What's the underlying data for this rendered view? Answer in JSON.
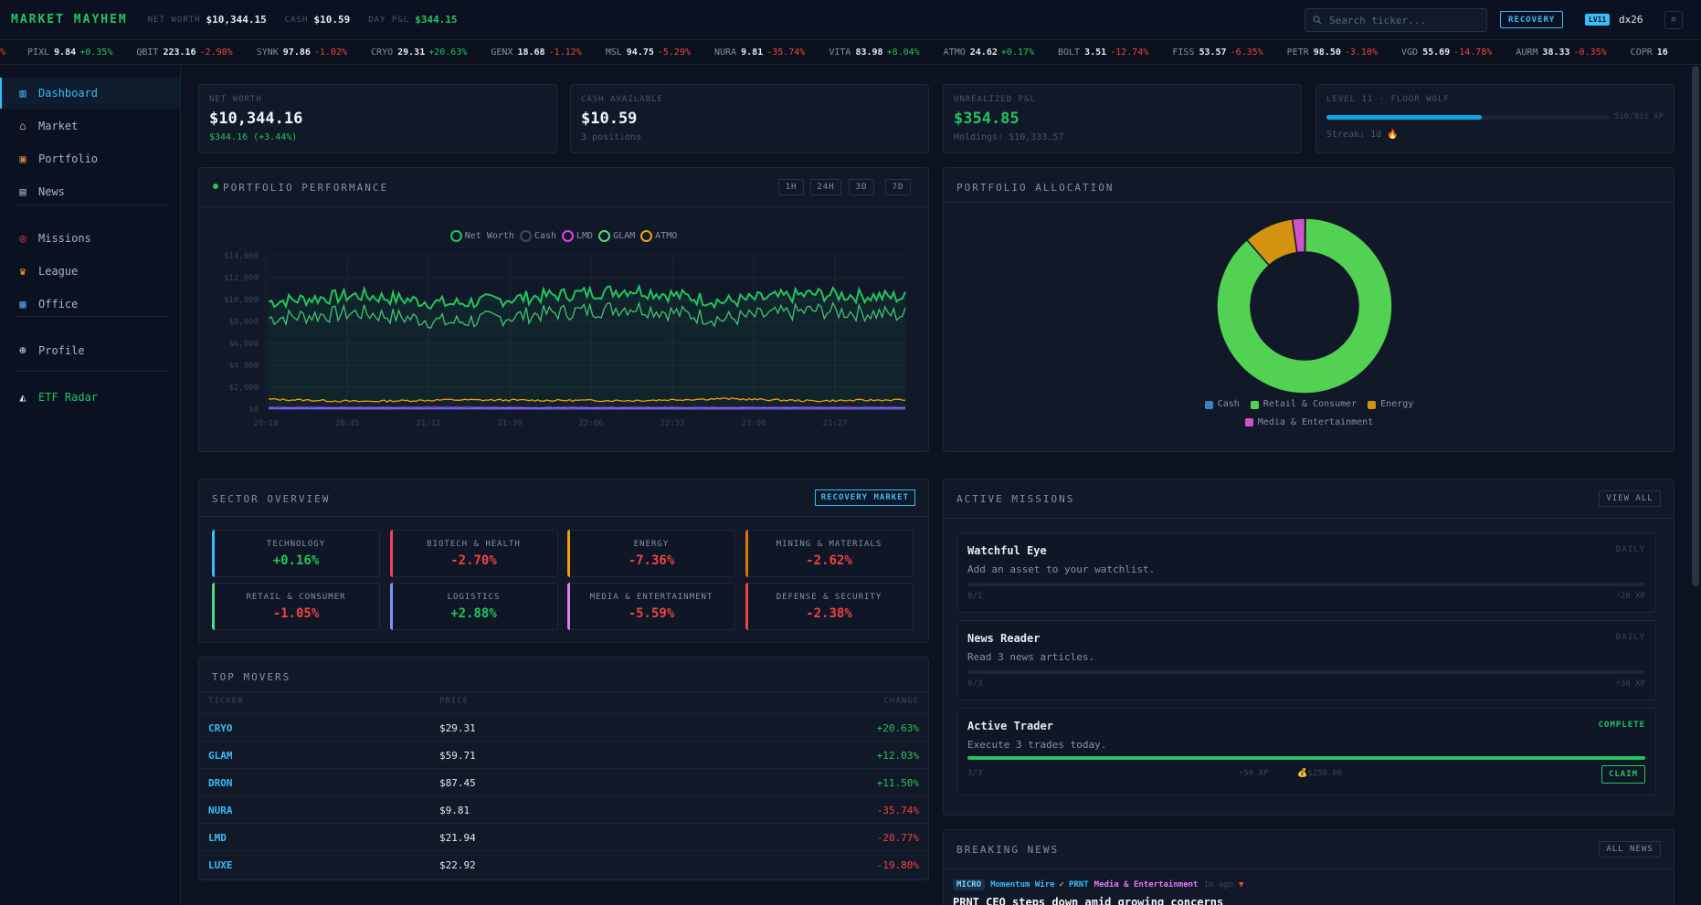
{
  "header": {
    "logo": "MARKET MAYHEM",
    "net_worth_label": "NET WORTH",
    "net_worth": "$10,344.15",
    "cash_label": "CASH",
    "cash": "$10.59",
    "day_pnl_label": "DAY P&L",
    "day_pnl": "$344.15",
    "search_placeholder": "Search ticker...",
    "market_mode": "RECOVERY",
    "level_badge": "LV11",
    "username": "dx26",
    "menu_glyph": "≡"
  },
  "ticker": [
    {
      "sym": "PIXL",
      "price": "9.84",
      "chg": "+0.35%",
      "dir": "pos"
    },
    {
      "sym": "QBIT",
      "price": "223.16",
      "chg": "-2.98%",
      "dir": "neg"
    },
    {
      "sym": "SYNK",
      "price": "97.86",
      "chg": "-1.02%",
      "dir": "neg"
    },
    {
      "sym": "CRYO",
      "price": "29.31",
      "chg": "+20.63%",
      "dir": "pos"
    },
    {
      "sym": "GENX",
      "price": "18.68",
      "chg": "-1.12%",
      "dir": "neg"
    },
    {
      "sym": "MSL",
      "price": "94.75",
      "chg": "-5.29%",
      "dir": "neg"
    },
    {
      "sym": "NURA",
      "price": "9.81",
      "chg": "-35.74%",
      "dir": "neg"
    },
    {
      "sym": "VITA",
      "price": "83.98",
      "chg": "+8.04%",
      "dir": "pos"
    },
    {
      "sym": "ATMO",
      "price": "24.62",
      "chg": "+0.17%",
      "dir": "pos"
    },
    {
      "sym": "BOLT",
      "price": "3.51",
      "chg": "-12.74%",
      "dir": "neg"
    },
    {
      "sym": "FISS",
      "price": "53.57",
      "chg": "-6.35%",
      "dir": "neg"
    },
    {
      "sym": "PETR",
      "price": "98.50",
      "chg": "-3.10%",
      "dir": "neg"
    },
    {
      "sym": "VGD",
      "price": "55.69",
      "chg": "-14.78%",
      "dir": "neg"
    },
    {
      "sym": "AURM",
      "price": "38.33",
      "chg": "-0.35%",
      "dir": "neg"
    },
    {
      "sym": "COPR",
      "price": "16",
      "chg": "",
      "dir": "neg"
    }
  ],
  "sidebar": {
    "items": [
      {
        "label": "Dashboard",
        "icon": "bar-chart-icon",
        "glyph": "▥"
      },
      {
        "label": "Market",
        "icon": "bank-icon",
        "glyph": "⌂"
      },
      {
        "label": "Portfolio",
        "icon": "briefcase-icon",
        "glyph": "▣"
      },
      {
        "label": "News",
        "icon": "newspaper-icon",
        "glyph": "▤"
      },
      {
        "label": "Missions",
        "icon": "target-icon",
        "glyph": "◎"
      },
      {
        "label": "League",
        "icon": "trophy-icon",
        "glyph": "♛"
      },
      {
        "label": "Office",
        "icon": "building-icon",
        "glyph": "▦"
      },
      {
        "label": "Profile",
        "icon": "person-icon",
        "glyph": "☻"
      },
      {
        "label": "ETF Radar",
        "icon": "radar-icon",
        "glyph": "◭"
      }
    ]
  },
  "summary": {
    "net_worth": {
      "label": "NET WORTH",
      "value": "$10,344.16",
      "sub": "$344.16 (+3.44%)"
    },
    "cash": {
      "label": "CASH AVAILABLE",
      "value": "$10.59",
      "sub": "3 positions"
    },
    "unrealized": {
      "label": "UNREALIZED P&L",
      "value": "$354.85",
      "sub": "Holdings: $10,333.57"
    },
    "level": {
      "label": "LEVEL 11 · FLOOR WOLF",
      "xp": "510/931 XP",
      "progress": 0.548,
      "streak": "Streak: 1d",
      "streak_icon": "🔥"
    }
  },
  "performance": {
    "title": "PORTFOLIO PERFORMANCE",
    "ranges": [
      "1H",
      "24H",
      "3D",
      "7D"
    ],
    "legend": [
      {
        "name": "Net Worth",
        "color": "#22c55e"
      },
      {
        "name": "Cash",
        "color": "#3b4a63"
      },
      {
        "name": "LMD",
        "color": "#d946ef"
      },
      {
        "name": "GLAM",
        "color": "#4ade80"
      },
      {
        "name": "ATMO",
        "color": "#f59e0b"
      }
    ],
    "y_ticks": [
      "$14,000",
      "$12,000",
      "$10,000",
      "$8,000",
      "$6,000",
      "$4,000",
      "$2,000",
      "$0"
    ],
    "x_ticks": [
      "20:18",
      "20:45",
      "21:12",
      "21:39",
      "22:06",
      "22:33",
      "23:00",
      "23:27"
    ]
  },
  "chart_data": {
    "type": "line",
    "x": [
      "20:18",
      "20:45",
      "21:12",
      "21:39",
      "22:06",
      "22:33",
      "23:00",
      "23:27"
    ],
    "ylim": [
      0,
      14000
    ],
    "series": [
      {
        "name": "Net Worth",
        "values": [
          9800,
          10400,
          9600,
          10300,
          10900,
          9800,
          10500,
          10200
        ]
      },
      {
        "name": "GLAM",
        "values": [
          9000,
          9500,
          8600,
          9400,
          10000,
          8900,
          9700,
          9300
        ]
      },
      {
        "name": "ATMO",
        "values": [
          900,
          700,
          850,
          800,
          780,
          950,
          750,
          850
        ]
      },
      {
        "name": "LMD",
        "values": [
          150,
          140,
          160,
          130,
          150,
          140,
          150,
          140
        ]
      },
      {
        "name": "Cash",
        "values": [
          30,
          20,
          25,
          15,
          20,
          15,
          15,
          11
        ]
      }
    ]
  },
  "allocation": {
    "title": "PORTFOLIO ALLOCATION",
    "slices": [
      {
        "name": "Cash",
        "value": 0.1,
        "color": "#3b82c4"
      },
      {
        "name": "Retail & Consumer",
        "value": 88.4,
        "color": "#52d152"
      },
      {
        "name": "Energy",
        "value": 9.2,
        "color": "#d4930f"
      },
      {
        "name": "Media & Entertainment",
        "value": 2.3,
        "color": "#d154c9"
      }
    ]
  },
  "sectors": {
    "title": "SECTOR OVERVIEW",
    "badge": "RECOVERY MARKET",
    "items": [
      {
        "name": "TECHNOLOGY",
        "value": "+0.16%",
        "dir": "pos",
        "color": "#38bdf8"
      },
      {
        "name": "BIOTECH & HEALTH",
        "value": "-2.70%",
        "dir": "neg",
        "color": "#f43f5e"
      },
      {
        "name": "ENERGY",
        "value": "-7.36%",
        "dir": "neg",
        "color": "#f59e0b"
      },
      {
        "name": "MINING & MATERIALS",
        "value": "-2.62%",
        "dir": "neg",
        "color": "#d97706"
      },
      {
        "name": "RETAIL & CONSUMER",
        "value": "-1.05%",
        "dir": "neg",
        "color": "#4ade80"
      },
      {
        "name": "LOGISTICS",
        "value": "+2.88%",
        "dir": "pos",
        "color": "#818cf8"
      },
      {
        "name": "MEDIA & ENTERTAINMENT",
        "value": "-5.59%",
        "dir": "neg",
        "color": "#e879f9"
      },
      {
        "name": "DEFENSE & SECURITY",
        "value": "-2.38%",
        "dir": "neg",
        "color": "#ef4444"
      }
    ]
  },
  "movers": {
    "title": "TOP MOVERS",
    "headers": [
      "TICKER",
      "PRICE",
      "CHANGE"
    ],
    "rows": [
      {
        "ticker": "CRYO",
        "price": "$29.31",
        "change": "+20.63%",
        "dir": "pos"
      },
      {
        "ticker": "GLAM",
        "price": "$59.71",
        "change": "+12.03%",
        "dir": "pos"
      },
      {
        "ticker": "DRON",
        "price": "$87.45",
        "change": "+11.50%",
        "dir": "pos"
      },
      {
        "ticker": "NURA",
        "price": "$9.81",
        "change": "-35.74%",
        "dir": "neg"
      },
      {
        "ticker": "LMD",
        "price": "$21.94",
        "change": "-20.77%",
        "dir": "neg"
      },
      {
        "ticker": "LUXE",
        "price": "$22.92",
        "change": "-19.80%",
        "dir": "neg"
      }
    ]
  },
  "missions": {
    "title": "ACTIVE MISSIONS",
    "view_all": "VIEW ALL",
    "items": [
      {
        "title": "Watchful Eye",
        "desc": "Add an asset to your watchlist.",
        "tag": "DAILY",
        "progress": "0/1",
        "fraction": 0,
        "xp": "⚡20 XP"
      },
      {
        "title": "News Reader",
        "desc": "Read 3 news articles.",
        "tag": "DAILY",
        "progress": "0/3",
        "fraction": 0,
        "xp": "⚡30 XP"
      },
      {
        "title": "Active Trader",
        "desc": "Execute 3 trades today.",
        "tag": "COMPLETE",
        "progress": "3/3",
        "fraction": 1,
        "xp": "⚡50 XP",
        "cash": "💰$250.00",
        "claim": "CLAIM"
      }
    ]
  },
  "news": {
    "title": "BREAKING NEWS",
    "all_news": "ALL NEWS",
    "badge": "MICRO",
    "source": "Momentum Wire",
    "check": "✓",
    "ticker": "PRNT",
    "sector": "Media & Entertainment",
    "time": "1m ago",
    "arrow": "▼",
    "headline": "PRNT CEO steps down amid growing concerns"
  }
}
